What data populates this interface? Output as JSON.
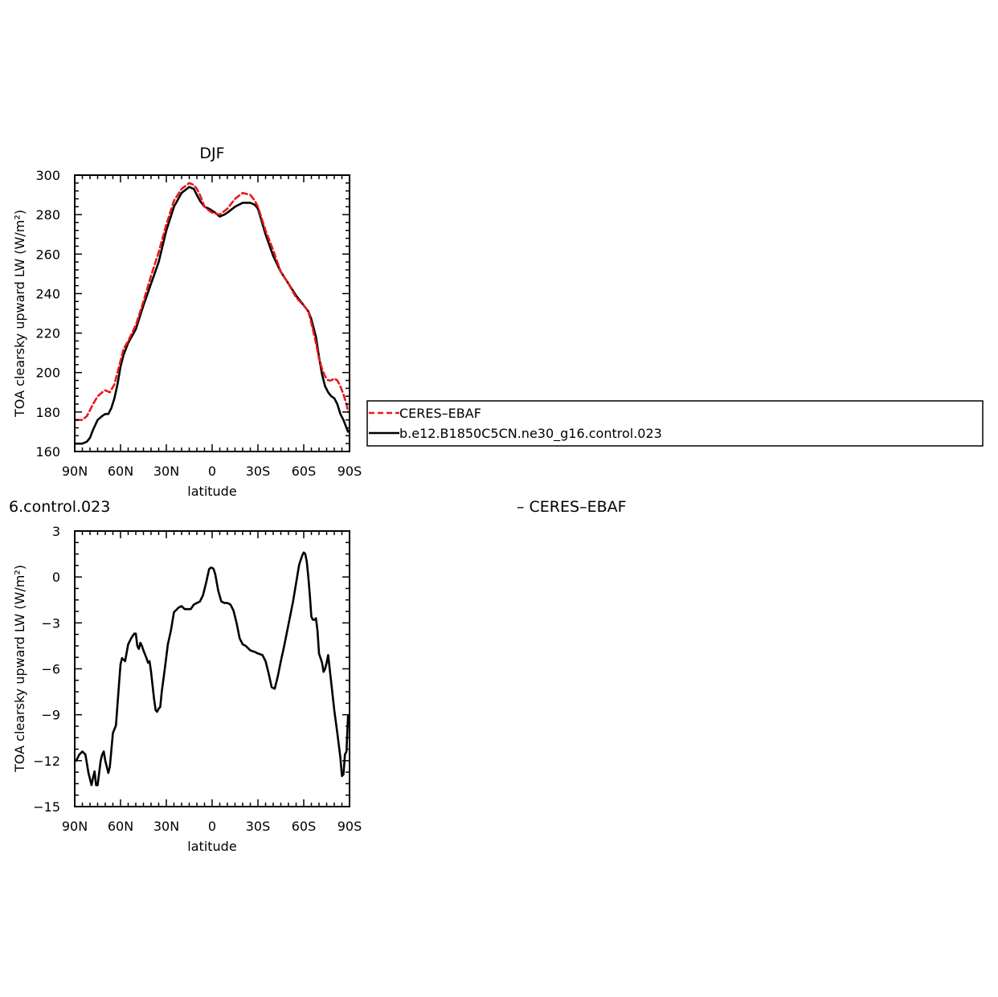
{
  "colors": {
    "obs": "#e8191b",
    "model": "#000000"
  },
  "panels": {
    "top": {
      "title": "DJF",
      "ylabel": "TOA clearsky upward LW (W/m²)",
      "xlabel": "latitude"
    },
    "bottom": {
      "title_left": "6.control.023",
      "title_right": "– CERES–EBAF",
      "ylabel": "TOA clearsky upward LW (W/m²)",
      "xlabel": "latitude"
    }
  },
  "legend": [
    {
      "label": "CERES–EBAF",
      "color": "#e8191b",
      "style": "dashed"
    },
    {
      "label": "b.e12.B1850C5CN.ne30_g16.control.023",
      "color": "#000000",
      "style": "solid"
    }
  ],
  "chart_data": [
    {
      "type": "line",
      "title": "DJF",
      "xlabel": "latitude",
      "ylabel": "TOA clearsky upward LW (W/m²)",
      "xlim": [
        90,
        -90
      ],
      "ylim": [
        160,
        300
      ],
      "xticks": [
        90,
        60,
        30,
        0,
        -30,
        -60,
        -90
      ],
      "xtick_labels": [
        "90N",
        "60N",
        "30N",
        "0",
        "30S",
        "60S",
        "90S"
      ],
      "yticks": [
        160,
        180,
        200,
        220,
        240,
        260,
        280,
        300
      ],
      "ytick_labels": [
        "160",
        "180",
        "200",
        "220",
        "240",
        "260",
        "280",
        "300"
      ],
      "series": [
        {
          "name": "CERES–EBAF",
          "style": "dashed",
          "x": [
            89,
            85,
            82,
            80,
            78,
            75,
            72,
            70,
            67,
            64,
            62,
            60,
            58,
            55,
            50,
            45,
            40,
            35,
            30,
            25,
            20,
            15,
            12,
            10,
            8,
            5,
            2,
            0,
            -5,
            -10,
            -15,
            -20,
            -25,
            -28,
            -30,
            -35,
            -40,
            -45,
            -50,
            -55,
            -60,
            -63,
            -65,
            -68,
            -70,
            -72,
            -74,
            -76,
            -78,
            -80,
            -82,
            -84,
            -86,
            -88,
            -89
          ],
          "y": [
            176,
            176,
            178,
            181,
            184,
            188,
            190,
            191,
            190,
            194,
            200,
            206,
            212,
            216,
            224,
            236,
            249,
            261,
            275,
            287,
            293,
            296,
            295,
            293,
            290,
            284,
            282,
            281,
            280,
            283,
            288,
            291,
            290,
            287,
            284,
            272,
            262,
            251,
            245,
            238,
            234,
            231,
            225,
            215,
            207,
            202,
            198,
            196,
            196,
            197,
            196,
            193,
            189,
            184,
            180
          ]
        },
        {
          "name": "b.e12.B1850C5CN.ne30_g16.control.023",
          "style": "solid",
          "x": [
            89,
            85,
            82,
            80,
            78,
            75,
            72,
            70,
            68,
            66,
            64,
            62,
            60,
            58,
            55,
            50,
            45,
            40,
            35,
            30,
            25,
            20,
            15,
            12,
            10,
            8,
            5,
            2,
            0,
            -2,
            -5,
            -8,
            -10,
            -15,
            -20,
            -25,
            -28,
            -30,
            -35,
            -40,
            -45,
            -50,
            -55,
            -60,
            -63,
            -65,
            -68,
            -70,
            -72,
            -74,
            -76,
            -78,
            -80,
            -82,
            -84,
            -86,
            -88,
            -89
          ],
          "y": [
            164,
            164,
            165,
            167,
            171,
            176,
            178,
            179,
            179,
            182,
            187,
            194,
            203,
            209,
            215,
            222,
            234,
            245,
            256,
            272,
            284,
            291,
            294,
            293,
            290,
            287,
            284,
            283,
            282,
            281,
            279,
            280,
            281,
            284,
            286,
            286,
            285,
            283,
            270,
            259,
            251,
            245,
            239,
            234,
            231,
            227,
            218,
            208,
            199,
            193,
            190,
            188,
            187,
            184,
            179,
            176,
            172,
            170
          ]
        }
      ]
    },
    {
      "type": "line",
      "title": "6.control.023 – CERES–EBAF",
      "xlabel": "latitude",
      "ylabel": "TOA clearsky upward LW (W/m²)",
      "xlim": [
        90,
        -90
      ],
      "ylim": [
        -15,
        3
      ],
      "xticks": [
        90,
        60,
        30,
        0,
        -30,
        -60,
        -90
      ],
      "xtick_labels": [
        "90N",
        "60N",
        "30N",
        "0",
        "30S",
        "60S",
        "90S"
      ],
      "yticks": [
        -15,
        -12,
        -9,
        -6,
        -3,
        0,
        3
      ],
      "ytick_labels": [
        "−15",
        "−12",
        "−9",
        "−6",
        "−3",
        "0",
        "3"
      ],
      "series": [
        {
          "style": "solid",
          "x": [
            89,
            87,
            85,
            83,
            81,
            79,
            78,
            77,
            76,
            75,
            73,
            72,
            71,
            70,
            68,
            67,
            65,
            63,
            61,
            60,
            59,
            57,
            55,
            53,
            51,
            50,
            49,
            48,
            47,
            46,
            45,
            43,
            42,
            41,
            40,
            38,
            37,
            36,
            35,
            34,
            33,
            31,
            29,
            27,
            25,
            22,
            20,
            18,
            16,
            14,
            12,
            10,
            8,
            6,
            4,
            2,
            1,
            0,
            -1,
            -2,
            -4,
            -6,
            -8,
            -10,
            -12,
            -14,
            -16,
            -18,
            -20,
            -22,
            -25,
            -28,
            -30,
            -33,
            -35,
            -37,
            -39,
            -41,
            -43,
            -45,
            -47,
            -50,
            -53,
            -55,
            -57,
            -59,
            -60,
            -61,
            -62,
            -63,
            -64,
            -65,
            -66,
            -67,
            -68,
            -69,
            -70,
            -72,
            -73,
            -74,
            -75,
            -76,
            -78,
            -80,
            -82,
            -84,
            -85,
            -86,
            -87,
            -88,
            -89
          ],
          "y": [
            -12.0,
            -11.6,
            -11.4,
            -11.6,
            -12.8,
            -13.6,
            -13.1,
            -12.7,
            -13.6,
            -13.6,
            -12.0,
            -11.6,
            -11.4,
            -12.0,
            -12.8,
            -12.4,
            -10.2,
            -9.7,
            -7.0,
            -5.7,
            -5.3,
            -5.5,
            -4.4,
            -4.0,
            -3.7,
            -3.7,
            -4.5,
            -4.7,
            -4.3,
            -4.5,
            -4.8,
            -5.3,
            -5.6,
            -5.5,
            -6.2,
            -8.0,
            -8.7,
            -8.8,
            -8.6,
            -8.5,
            -7.5,
            -6.0,
            -4.4,
            -3.5,
            -2.3,
            -2.0,
            -1.9,
            -2.1,
            -2.1,
            -2.1,
            -1.8,
            -1.7,
            -1.6,
            -1.2,
            -0.4,
            0.5,
            0.6,
            0.6,
            0.5,
            0.2,
            -0.9,
            -1.6,
            -1.7,
            -1.7,
            -1.8,
            -2.2,
            -3.0,
            -4.0,
            -4.4,
            -4.5,
            -4.8,
            -4.9,
            -5.0,
            -5.1,
            -5.5,
            -6.3,
            -7.2,
            -7.3,
            -6.5,
            -5.5,
            -4.6,
            -3.1,
            -1.6,
            -0.4,
            0.8,
            1.4,
            1.6,
            1.5,
            1.0,
            0.0,
            -1.2,
            -2.6,
            -2.8,
            -2.8,
            -2.7,
            -3.5,
            -5.0,
            -5.6,
            -6.2,
            -6.0,
            -5.6,
            -5.1,
            -6.9,
            -8.7,
            -10.2,
            -11.8,
            -13.0,
            -12.9,
            -11.6,
            -11.4,
            -9.1
          ]
        }
      ]
    }
  ]
}
